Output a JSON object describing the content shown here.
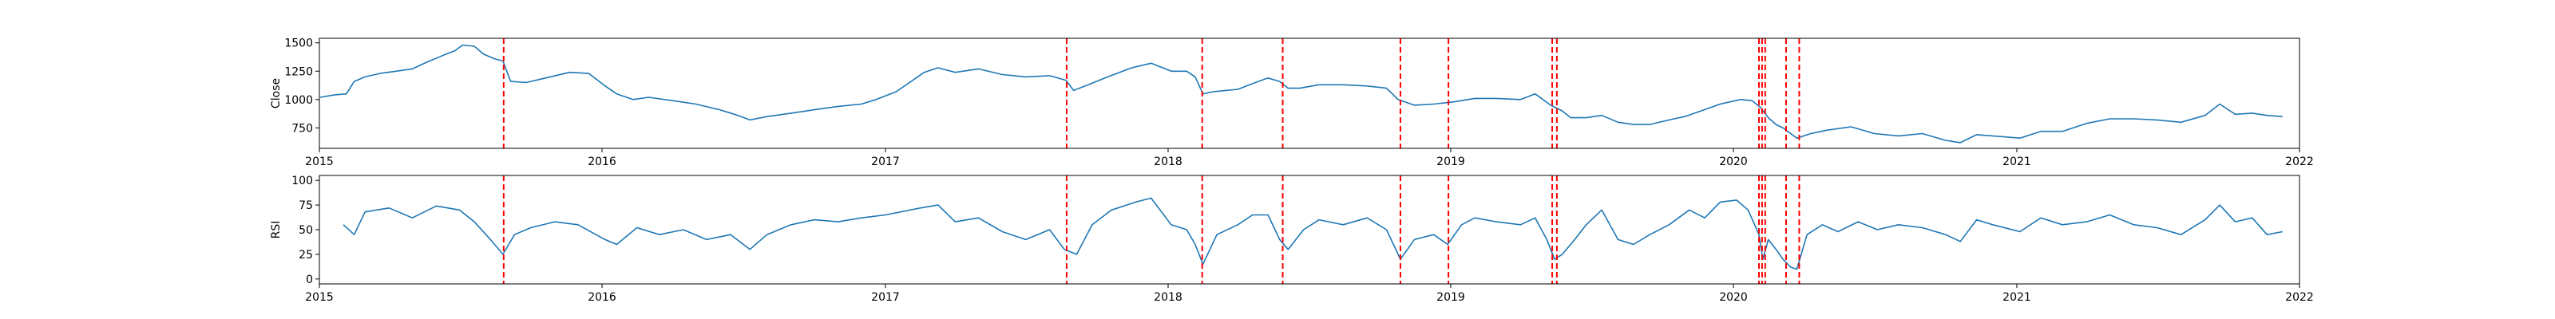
{
  "chart_data": [
    {
      "type": "line",
      "title": "",
      "xlabel": "",
      "ylabel": "Close",
      "xlim": [
        "2015-01-01",
        "2022-01-01"
      ],
      "ylim": [
        570,
        1540
      ],
      "x_ticks": [
        "2015",
        "2016",
        "2017",
        "2018",
        "2019",
        "2020",
        "2021",
        "2022"
      ],
      "y_ticks": [
        750,
        1000,
        1250,
        1500
      ],
      "grid": false,
      "series": [
        {
          "color": "#1f77b4",
          "points": [
            [
              "2015-01-02",
              1020
            ],
            [
              "2015-01-20",
              1040
            ],
            [
              "2015-02-05",
              1050
            ],
            [
              "2015-02-15",
              1160
            ],
            [
              "2015-03-01",
              1200
            ],
            [
              "2015-03-20",
              1230
            ],
            [
              "2015-04-10",
              1250
            ],
            [
              "2015-05-01",
              1270
            ],
            [
              "2015-05-20",
              1330
            ],
            [
              "2015-06-10",
              1390
            ],
            [
              "2015-06-25",
              1430
            ],
            [
              "2015-07-05",
              1480
            ],
            [
              "2015-07-20",
              1470
            ],
            [
              "2015-08-01",
              1400
            ],
            [
              "2015-08-15",
              1360
            ],
            [
              "2015-08-26",
              1340
            ],
            [
              "2015-09-05",
              1160
            ],
            [
              "2015-09-25",
              1150
            ],
            [
              "2015-10-20",
              1190
            ],
            [
              "2015-11-20",
              1240
            ],
            [
              "2015-12-15",
              1230
            ],
            [
              "2016-01-05",
              1120
            ],
            [
              "2016-01-20",
              1050
            ],
            [
              "2016-02-10",
              1000
            ],
            [
              "2016-03-01",
              1020
            ],
            [
              "2016-04-01",
              990
            ],
            [
              "2016-05-01",
              960
            ],
            [
              "2016-06-01",
              910
            ],
            [
              "2016-06-20",
              870
            ],
            [
              "2016-07-10",
              820
            ],
            [
              "2016-08-01",
              850
            ],
            [
              "2016-09-01",
              880
            ],
            [
              "2016-10-01",
              910
            ],
            [
              "2016-11-01",
              940
            ],
            [
              "2016-12-01",
              960
            ],
            [
              "2016-12-20",
              1000
            ],
            [
              "2017-01-15",
              1070
            ],
            [
              "2017-02-01",
              1150
            ],
            [
              "2017-02-20",
              1240
            ],
            [
              "2017-03-10",
              1280
            ],
            [
              "2017-04-01",
              1240
            ],
            [
              "2017-05-01",
              1270
            ],
            [
              "2017-06-01",
              1220
            ],
            [
              "2017-07-01",
              1200
            ],
            [
              "2017-08-01",
              1210
            ],
            [
              "2017-08-22",
              1170
            ],
            [
              "2017-09-01",
              1080
            ],
            [
              "2017-09-20",
              1130
            ],
            [
              "2017-10-15",
              1200
            ],
            [
              "2017-11-15",
              1280
            ],
            [
              "2017-12-10",
              1320
            ],
            [
              "2018-01-05",
              1250
            ],
            [
              "2018-01-25",
              1250
            ],
            [
              "2018-02-05",
              1200
            ],
            [
              "2018-02-15",
              1050
            ],
            [
              "2018-03-01",
              1070
            ],
            [
              "2018-04-01",
              1090
            ],
            [
              "2018-04-20",
              1140
            ],
            [
              "2018-05-10",
              1190
            ],
            [
              "2018-05-25",
              1160
            ],
            [
              "2018-06-05",
              1100
            ],
            [
              "2018-06-20",
              1100
            ],
            [
              "2018-07-15",
              1130
            ],
            [
              "2018-08-15",
              1130
            ],
            [
              "2018-09-15",
              1120
            ],
            [
              "2018-10-10",
              1100
            ],
            [
              "2018-10-25",
              1000
            ],
            [
              "2018-11-15",
              950
            ],
            [
              "2018-12-10",
              960
            ],
            [
              "2019-01-05",
              980
            ],
            [
              "2019-02-01",
              1010
            ],
            [
              "2019-03-01",
              1010
            ],
            [
              "2019-04-01",
              1000
            ],
            [
              "2019-04-20",
              1050
            ],
            [
              "2019-05-10",
              950
            ],
            [
              "2019-05-25",
              900
            ],
            [
              "2019-06-05",
              840
            ],
            [
              "2019-06-25",
              840
            ],
            [
              "2019-07-15",
              860
            ],
            [
              "2019-08-05",
              800
            ],
            [
              "2019-08-25",
              780
            ],
            [
              "2019-09-15",
              780
            ],
            [
              "2019-10-10",
              820
            ],
            [
              "2019-10-30",
              850
            ],
            [
              "2019-11-20",
              900
            ],
            [
              "2019-12-15",
              960
            ],
            [
              "2020-01-10",
              1000
            ],
            [
              "2020-01-25",
              990
            ],
            [
              "2020-02-05",
              930
            ],
            [
              "2020-02-15",
              840
            ],
            [
              "2020-02-25",
              780
            ],
            [
              "2020-03-05",
              750
            ],
            [
              "2020-03-15",
              700
            ],
            [
              "2020-03-23",
              660
            ],
            [
              "2020-04-10",
              700
            ],
            [
              "2020-05-01",
              730
            ],
            [
              "2020-06-01",
              760
            ],
            [
              "2020-07-01",
              700
            ],
            [
              "2020-08-01",
              680
            ],
            [
              "2020-09-01",
              700
            ],
            [
              "2020-10-01",
              640
            ],
            [
              "2020-10-20",
              620
            ],
            [
              "2020-11-10",
              690
            ],
            [
              "2020-12-01",
              680
            ],
            [
              "2021-01-05",
              660
            ],
            [
              "2021-02-01",
              720
            ],
            [
              "2021-03-01",
              720
            ],
            [
              "2021-04-01",
              790
            ],
            [
              "2021-05-01",
              830
            ],
            [
              "2021-06-01",
              830
            ],
            [
              "2021-07-01",
              820
            ],
            [
              "2021-08-01",
              800
            ],
            [
              "2021-09-01",
              860
            ],
            [
              "2021-09-20",
              960
            ],
            [
              "2021-10-10",
              870
            ],
            [
              "2021-11-01",
              880
            ],
            [
              "2021-11-20",
              860
            ],
            [
              "2021-12-10",
              850
            ]
          ]
        }
      ],
      "vlines": {
        "color": "#ff0000",
        "style": "dashed",
        "dates": [
          "2015-08-27",
          "2017-08-23",
          "2018-02-14",
          "2018-05-29",
          "2018-10-28",
          "2018-12-29",
          "2019-05-12",
          "2019-05-18",
          "2020-02-03",
          "2020-02-07",
          "2020-02-11",
          "2020-03-09",
          "2020-03-26"
        ]
      }
    },
    {
      "type": "line",
      "title": "",
      "xlabel": "",
      "ylabel": "RSI",
      "xlim": [
        "2015-01-01",
        "2022-01-01"
      ],
      "ylim": [
        -5,
        105
      ],
      "x_ticks": [
        "2015",
        "2016",
        "2017",
        "2018",
        "2019",
        "2020",
        "2021",
        "2022"
      ],
      "y_ticks": [
        0,
        25,
        50,
        75,
        100
      ],
      "grid": false,
      "series": [
        {
          "color": "#1f77b4",
          "points": [
            [
              "2015-02-01",
              55
            ],
            [
              "2015-02-15",
              45
            ],
            [
              "2015-03-01",
              68
            ],
            [
              "2015-04-01",
              72
            ],
            [
              "2015-05-01",
              62
            ],
            [
              "2015-06-01",
              74
            ],
            [
              "2015-07-01",
              70
            ],
            [
              "2015-07-20",
              58
            ],
            [
              "2015-08-10",
              40
            ],
            [
              "2015-08-26",
              25
            ],
            [
              "2015-09-10",
              45
            ],
            [
              "2015-10-01",
              52
            ],
            [
              "2015-11-01",
              58
            ],
            [
              "2015-12-01",
              55
            ],
            [
              "2016-01-05",
              40
            ],
            [
              "2016-01-20",
              35
            ],
            [
              "2016-02-15",
              52
            ],
            [
              "2016-03-15",
              45
            ],
            [
              "2016-04-15",
              50
            ],
            [
              "2016-05-15",
              40
            ],
            [
              "2016-06-15",
              45
            ],
            [
              "2016-07-10",
              30
            ],
            [
              "2016-08-01",
              45
            ],
            [
              "2016-09-01",
              55
            ],
            [
              "2016-10-01",
              60
            ],
            [
              "2016-11-01",
              58
            ],
            [
              "2016-12-01",
              62
            ],
            [
              "2017-01-01",
              65
            ],
            [
              "2017-02-15",
              72
            ],
            [
              "2017-03-10",
              75
            ],
            [
              "2017-04-01",
              58
            ],
            [
              "2017-05-01",
              62
            ],
            [
              "2017-06-01",
              48
            ],
            [
              "2017-07-01",
              40
            ],
            [
              "2017-08-01",
              50
            ],
            [
              "2017-08-20",
              30
            ],
            [
              "2017-09-05",
              25
            ],
            [
              "2017-09-25",
              55
            ],
            [
              "2017-10-20",
              70
            ],
            [
              "2017-11-20",
              78
            ],
            [
              "2017-12-10",
              82
            ],
            [
              "2018-01-05",
              55
            ],
            [
              "2018-01-25",
              50
            ],
            [
              "2018-02-05",
              35
            ],
            [
              "2018-02-15",
              15
            ],
            [
              "2018-03-05",
              45
            ],
            [
              "2018-04-01",
              55
            ],
            [
              "2018-04-20",
              65
            ],
            [
              "2018-05-10",
              65
            ],
            [
              "2018-05-25",
              40
            ],
            [
              "2018-06-05",
              30
            ],
            [
              "2018-06-25",
              50
            ],
            [
              "2018-07-15",
              60
            ],
            [
              "2018-08-15",
              55
            ],
            [
              "2018-09-15",
              62
            ],
            [
              "2018-10-10",
              50
            ],
            [
              "2018-10-28",
              20
            ],
            [
              "2018-11-15",
              40
            ],
            [
              "2018-12-10",
              45
            ],
            [
              "2018-12-28",
              35
            ],
            [
              "2019-01-15",
              55
            ],
            [
              "2019-02-01",
              62
            ],
            [
              "2019-03-01",
              58
            ],
            [
              "2019-04-01",
              55
            ],
            [
              "2019-04-20",
              62
            ],
            [
              "2019-05-05",
              40
            ],
            [
              "2019-05-15",
              20
            ],
            [
              "2019-05-25",
              25
            ],
            [
              "2019-06-10",
              40
            ],
            [
              "2019-06-25",
              55
            ],
            [
              "2019-07-15",
              70
            ],
            [
              "2019-08-05",
              40
            ],
            [
              "2019-08-25",
              35
            ],
            [
              "2019-09-15",
              45
            ],
            [
              "2019-10-10",
              55
            ],
            [
              "2019-11-05",
              70
            ],
            [
              "2019-11-25",
              62
            ],
            [
              "2019-12-15",
              78
            ],
            [
              "2020-01-05",
              80
            ],
            [
              "2020-01-20",
              70
            ],
            [
              "2020-02-03",
              45
            ],
            [
              "2020-02-08",
              20
            ],
            [
              "2020-02-15",
              40
            ],
            [
              "2020-02-25",
              30
            ],
            [
              "2020-03-05",
              20
            ],
            [
              "2020-03-15",
              12
            ],
            [
              "2020-03-23",
              10
            ],
            [
              "2020-04-05",
              45
            ],
            [
              "2020-04-25",
              55
            ],
            [
              "2020-05-15",
              48
            ],
            [
              "2020-06-10",
              58
            ],
            [
              "2020-07-05",
              50
            ],
            [
              "2020-08-01",
              55
            ],
            [
              "2020-09-01",
              52
            ],
            [
              "2020-10-01",
              45
            ],
            [
              "2020-10-20",
              38
            ],
            [
              "2020-11-10",
              60
            ],
            [
              "2020-12-01",
              55
            ],
            [
              "2021-01-05",
              48
            ],
            [
              "2021-02-01",
              62
            ],
            [
              "2021-03-01",
              55
            ],
            [
              "2021-04-01",
              58
            ],
            [
              "2021-05-01",
              65
            ],
            [
              "2021-06-01",
              55
            ],
            [
              "2021-07-01",
              52
            ],
            [
              "2021-08-01",
              45
            ],
            [
              "2021-09-01",
              60
            ],
            [
              "2021-09-20",
              75
            ],
            [
              "2021-10-10",
              58
            ],
            [
              "2021-11-01",
              62
            ],
            [
              "2021-11-20",
              45
            ],
            [
              "2021-12-10",
              48
            ]
          ]
        }
      ],
      "vlines": {
        "color": "#ff0000",
        "style": "dashed",
        "dates": [
          "2015-08-27",
          "2017-08-23",
          "2018-02-14",
          "2018-05-29",
          "2018-10-28",
          "2018-12-29",
          "2019-05-12",
          "2019-05-18",
          "2020-02-03",
          "2020-02-07",
          "2020-02-11",
          "2020-03-09",
          "2020-03-26"
        ]
      }
    }
  ]
}
